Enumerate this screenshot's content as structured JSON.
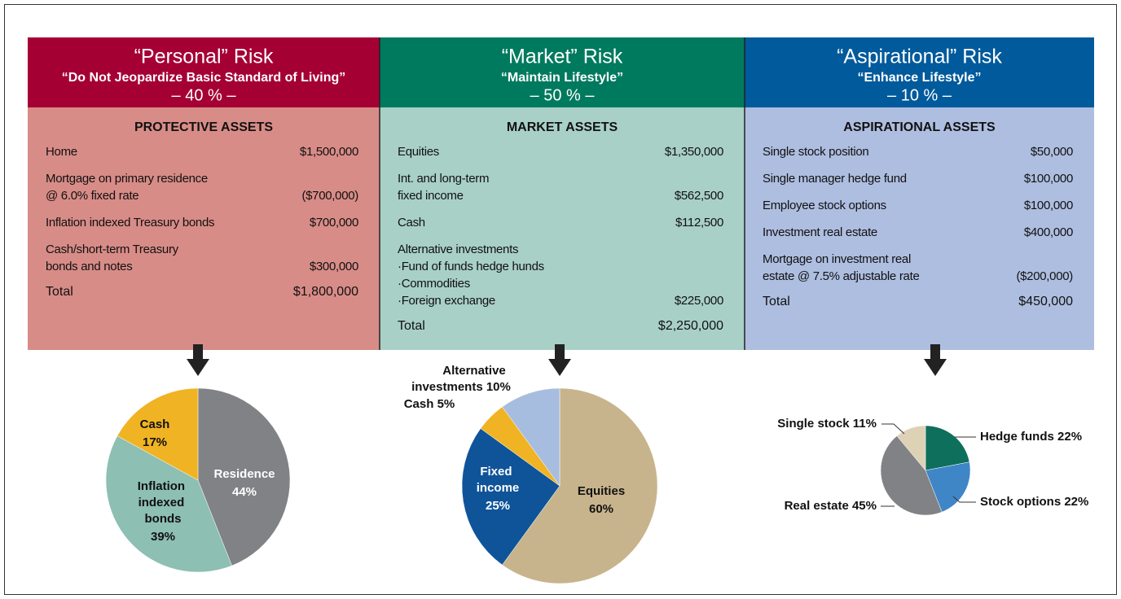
{
  "panels": [
    {
      "title": "“Personal” Risk",
      "subtitle": "“Do Not Jeopardize Basic Standard of Living”",
      "percent": "– 40 % –",
      "assets_heading": "PROTECTIVE ASSETS",
      "rows": [
        {
          "lines": [
            "Home"
          ],
          "value": "$1,500,000"
        },
        {
          "lines": [
            "Mortgage on primary residence",
            "@ 6.0% fixed rate"
          ],
          "value": "($700,000)"
        },
        {
          "lines": [
            "Inflation indexed Treasury bonds"
          ],
          "value": "$700,000"
        },
        {
          "lines": [
            "Cash/short-term Treasury",
            "bonds and notes"
          ],
          "value": "$300,000"
        }
      ],
      "total": {
        "label": "Total",
        "value": "$1,800,000"
      }
    },
    {
      "title": "“Market” Risk",
      "subtitle": "“Maintain Lifestyle”",
      "percent": "– 50 % –",
      "assets_heading": "MARKET ASSETS",
      "rows": [
        {
          "lines": [
            "Equities"
          ],
          "value": "$1,350,000"
        },
        {
          "lines": [
            "Int. and long-term",
            "fixed income"
          ],
          "value": "$562,500"
        },
        {
          "lines": [
            "Cash"
          ],
          "value": "$112,500"
        },
        {
          "lines": [
            "Alternative investments",
            "·Fund of funds hedge hunds",
            "·Commodities",
            "·Foreign exchange"
          ],
          "value": "$225,000"
        }
      ],
      "total": {
        "label": "Total",
        "value": "$2,250,000"
      }
    },
    {
      "title": "“Aspirational” Risk",
      "subtitle": "“Enhance Lifestyle”",
      "percent": "– 10 % –",
      "assets_heading": "ASPIRATIONAL ASSETS",
      "rows": [
        {
          "lines": [
            "Single stock position"
          ],
          "value": "$50,000"
        },
        {
          "lines": [
            "Single manager hedge fund"
          ],
          "value": "$100,000"
        },
        {
          "lines": [
            "Employee stock options"
          ],
          "value": "$100,000"
        },
        {
          "lines": [
            "Investment real estate"
          ],
          "value": "$400,000"
        },
        {
          "lines": [
            "Mortgage on investment real",
            "estate @ 7.5% adjustable rate"
          ],
          "value": "($200,000)"
        }
      ],
      "total": {
        "label": "Total",
        "value": "$450,000"
      }
    }
  ],
  "chart_data": [
    {
      "type": "pie",
      "categories": [
        "Residence",
        "Inflation indexed bonds",
        "Cash"
      ],
      "values": [
        44,
        39,
        17
      ],
      "value_labels": [
        "44%",
        "39%",
        "17%"
      ],
      "colors": [
        "#808285",
        "#8dbfb3",
        "#f0b323"
      ]
    },
    {
      "type": "pie",
      "categories": [
        "Equities",
        "Fixed income",
        "Cash",
        "Alternative investments"
      ],
      "values": [
        60,
        25,
        5,
        10
      ],
      "value_labels": [
        "60%",
        "25%",
        "5%",
        "10%"
      ],
      "colors": [
        "#c8b48c",
        "#0f5499",
        "#f0b323",
        "#a7bddf"
      ]
    },
    {
      "type": "pie",
      "categories": [
        "Hedge funds",
        "Stock options",
        "Real estate",
        "Single stock"
      ],
      "values": [
        22,
        22,
        45,
        11
      ],
      "value_labels": [
        "22%",
        "22%",
        "45%",
        "11%"
      ],
      "colors": [
        "#0e6f5c",
        "#3f86c6",
        "#808285",
        "#ddd1b6"
      ]
    }
  ]
}
